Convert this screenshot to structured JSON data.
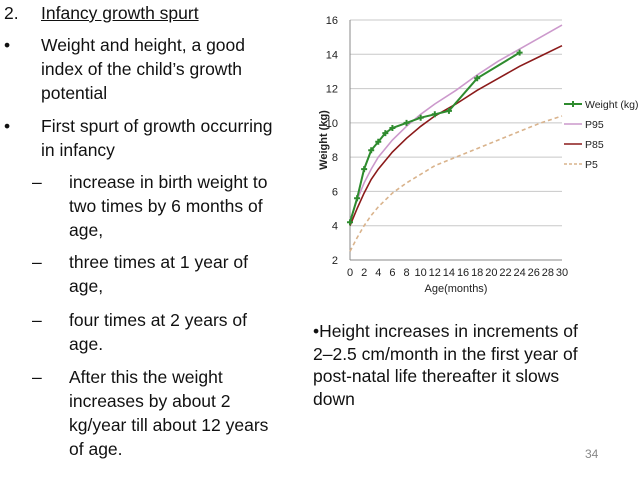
{
  "slide": {
    "heading": {
      "number": "2.",
      "text": "Infancy growth spurt"
    },
    "bullets": [
      {
        "symbol": "•",
        "lines": [
          " Weight and height, a good",
          "index of the child’s growth",
          "potential"
        ]
      },
      {
        "symbol": "•",
        "lines": [
          "First spurt of growth occurring",
          "in infancy"
        ]
      }
    ],
    "sub_bullets": [
      {
        "symbol": "–",
        "lines": [
          "increase in birth weight to",
          "two times by 6 months of",
          "age,"
        ]
      },
      {
        "symbol": "–",
        "lines": [
          "three times at 1 year of",
          "age,"
        ]
      },
      {
        "symbol": "–",
        "lines": [
          "four times at 2 years of",
          "age."
        ]
      },
      {
        "symbol": "–",
        "lines": [
          "After this the weight",
          "increases by about 2",
          "kg/year till about 12 years",
          "of age."
        ]
      }
    ],
    "note_lines": [
      "•Height increases in increments of",
      "2–2.5 cm/month in the first year of",
      "post-natal life thereafter it slows",
      "down"
    ],
    "page_number": "34"
  },
  "chart_data": {
    "type": "line",
    "xlabel": "Age(months)",
    "ylabel": "Weight (kg)",
    "xlim": [
      0,
      30
    ],
    "ylim": [
      2,
      16
    ],
    "xticks": [
      0,
      2,
      4,
      6,
      8,
      10,
      12,
      14,
      16,
      18,
      20,
      22,
      24,
      26,
      28,
      30
    ],
    "yticks": [
      2,
      4,
      6,
      8,
      10,
      12,
      14,
      16
    ],
    "grid": "horizontal",
    "legend_position": "right",
    "series": [
      {
        "name": "Weight (kg)",
        "color": "#2e8b2e",
        "style": "solid",
        "markers": true,
        "x": [
          0,
          1,
          2,
          3,
          4,
          5,
          6,
          8,
          10,
          12,
          14,
          18,
          24
        ],
        "y": [
          4.2,
          5.6,
          7.3,
          8.4,
          8.9,
          9.4,
          9.7,
          10.0,
          10.3,
          10.5,
          10.7,
          12.6,
          14.1
        ]
      },
      {
        "name": "P95",
        "color": "#cc99cc",
        "style": "solid",
        "markers": false,
        "x": [
          0,
          1,
          2,
          3,
          4,
          6,
          8,
          10,
          12,
          15,
          18,
          21,
          24,
          27,
          30
        ],
        "y": [
          4.3,
          5.5,
          6.5,
          7.3,
          8.0,
          9.0,
          9.8,
          10.5,
          11.1,
          11.9,
          12.8,
          13.6,
          14.3,
          15.0,
          15.7
        ]
      },
      {
        "name": "P85",
        "color": "#8b1a1a",
        "style": "solid",
        "markers": false,
        "x": [
          0,
          1,
          2,
          3,
          4,
          6,
          8,
          10,
          12,
          15,
          18,
          21,
          24,
          27,
          30
        ],
        "y": [
          4.0,
          5.0,
          5.9,
          6.7,
          7.3,
          8.3,
          9.1,
          9.8,
          10.4,
          11.1,
          11.9,
          12.6,
          13.3,
          13.9,
          14.5
        ]
      },
      {
        "name": "P5",
        "color": "#d9b38c",
        "style": "dashed",
        "markers": false,
        "x": [
          0,
          1,
          2,
          3,
          4,
          6,
          8,
          10,
          12,
          15,
          18,
          21,
          24,
          27,
          30
        ],
        "y": [
          2.5,
          3.3,
          4.0,
          4.6,
          5.1,
          5.9,
          6.5,
          7.0,
          7.5,
          8.0,
          8.5,
          9.0,
          9.5,
          10.0,
          10.4
        ]
      }
    ]
  }
}
